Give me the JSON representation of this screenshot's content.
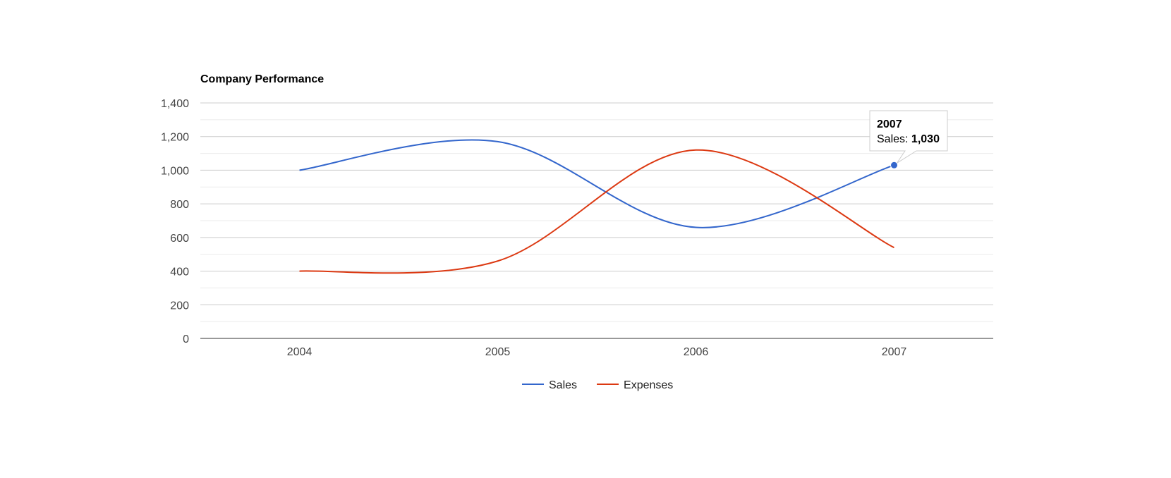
{
  "chart_data": {
    "type": "line",
    "title": "Company Performance",
    "categories": [
      "2004",
      "2005",
      "2006",
      "2007"
    ],
    "series": [
      {
        "name": "Sales",
        "values": [
          1000,
          1170,
          660,
          1030
        ],
        "color": "#3366cc"
      },
      {
        "name": "Expenses",
        "values": [
          400,
          460,
          1120,
          540
        ],
        "color": "#dc3912"
      }
    ],
    "ylim": [
      0,
      1400
    ],
    "yticks": [
      {
        "value": 0,
        "label": "0"
      },
      {
        "value": 200,
        "label": "200"
      },
      {
        "value": 400,
        "label": "400"
      },
      {
        "value": 600,
        "label": "600"
      },
      {
        "value": 800,
        "label": "800"
      },
      {
        "value": 1000,
        "label": "1,000"
      },
      {
        "value": 1200,
        "label": "1,200"
      },
      {
        "value": 1400,
        "label": "1,400"
      }
    ],
    "xlabel": "",
    "ylabel": "",
    "grid": true,
    "curve": "smooth",
    "legend": {
      "position": "bottom"
    },
    "tooltip": {
      "title": "2007",
      "series_label": "Sales: ",
      "value_label": "1,030",
      "series_index": 0,
      "category_index": 3
    }
  }
}
